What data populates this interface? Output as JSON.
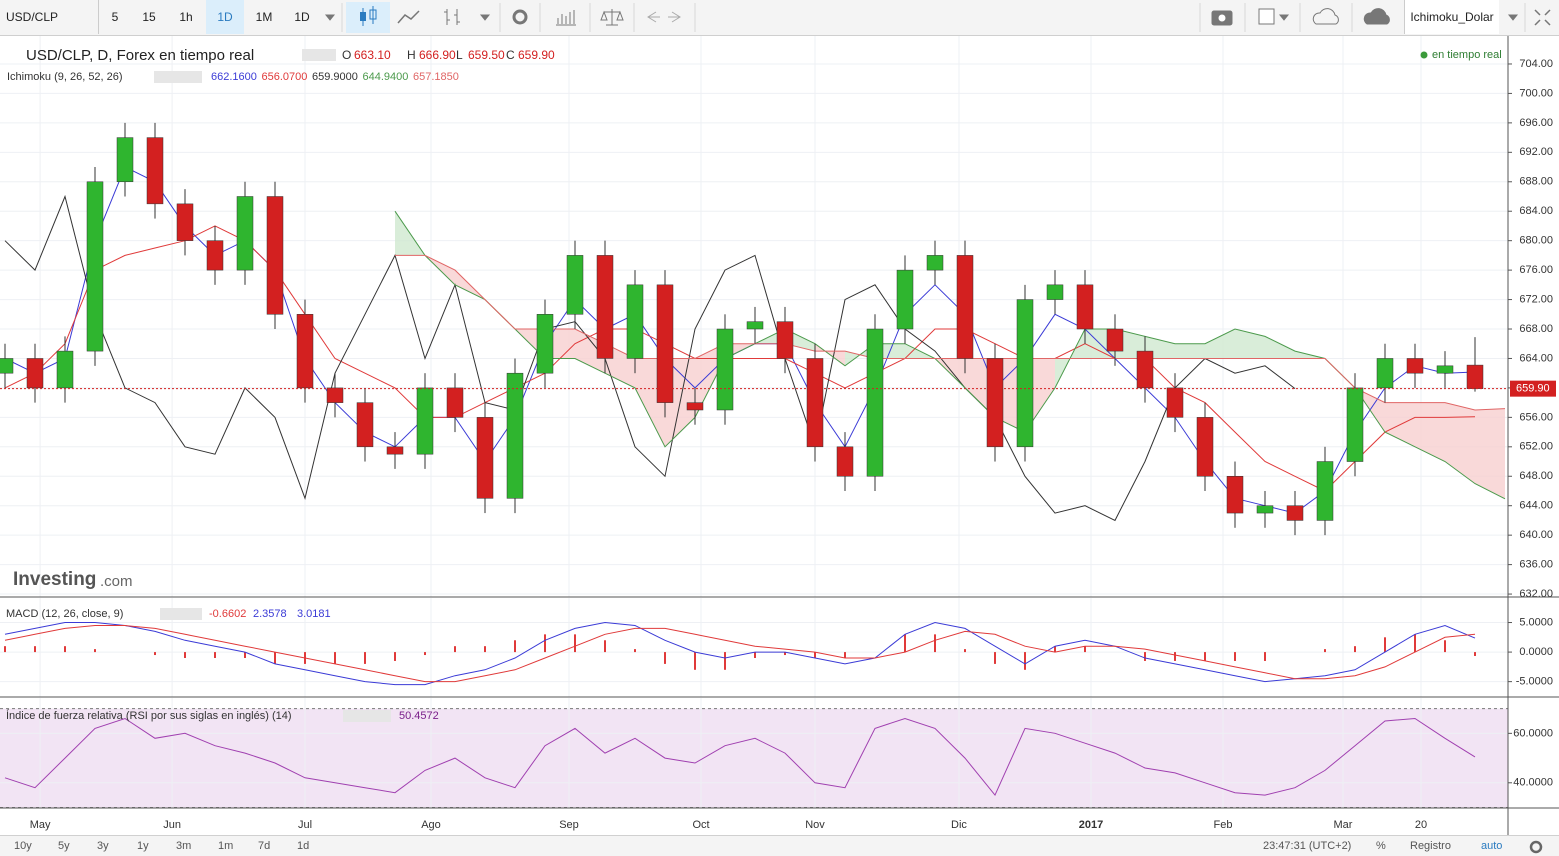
{
  "toolbar": {
    "symbol": "USD/CLP",
    "intervals": [
      "5",
      "15",
      "1h",
      "1D",
      "1M"
    ],
    "interval_menu": "1D",
    "layout_name": "Ichimoku_Dolar"
  },
  "chart_data": [
    {
      "type": "candlestick",
      "title": "USD/CLP, D, Forex en tiempo real",
      "ohlc_keys": [
        "O",
        "H",
        "L",
        "C"
      ],
      "ohlc_labels": [
        "663.10",
        "666.90",
        "659.50",
        "659.90"
      ],
      "status": "en tiempo real",
      "watermark": "Investing",
      "watermark_suffix": ".com",
      "last_label": "659.90",
      "indicator": {
        "title": "Ichimoku (9, 26, 52, 26)",
        "value_labels": [
          "662.1600",
          "656.0700",
          "659.9000",
          "644.9400",
          "657.1850"
        ]
      },
      "up_color": "#2fb52f",
      "down_color": "#d32020",
      "open": [
        662,
        664,
        660,
        665,
        688,
        694,
        685,
        680,
        676,
        686,
        670,
        660,
        658,
        652,
        651,
        660,
        656,
        645,
        662,
        670,
        678,
        664,
        674,
        658,
        657,
        668,
        669,
        664,
        652,
        648,
        668,
        676,
        678,
        664,
        652,
        672,
        674,
        668,
        665,
        660,
        656,
        648,
        643,
        644,
        642,
        650,
        660,
        664,
        662,
        663.1,
        null
      ],
      "high": [
        666,
        666,
        667,
        690,
        696,
        696,
        687,
        682,
        688,
        688,
        672,
        662,
        660,
        654,
        662,
        662,
        658,
        664,
        672,
        680,
        680,
        676,
        676,
        660,
        670,
        671,
        671,
        666,
        654,
        670,
        678,
        680,
        680,
        666,
        674,
        676,
        676,
        670,
        667,
        662,
        658,
        650,
        646,
        646,
        652,
        662,
        666,
        666,
        665,
        666.9,
        null
      ],
      "low": [
        660,
        658,
        658,
        663,
        686,
        683,
        678,
        674,
        674,
        668,
        658,
        656,
        650,
        649,
        649,
        654,
        643,
        643,
        660,
        668,
        662,
        662,
        656,
        655,
        655,
        666,
        662,
        650,
        646,
        646,
        666,
        674,
        662,
        650,
        650,
        670,
        666,
        663,
        658,
        654,
        646,
        641,
        641,
        640,
        640,
        648,
        658,
        660,
        660,
        659.5,
        null
      ],
      "close": [
        664,
        660,
        665,
        688,
        694,
        685,
        680,
        676,
        686,
        670,
        660,
        658,
        652,
        651,
        660,
        656,
        645,
        662,
        670,
        678,
        664,
        674,
        658,
        657,
        668,
        669,
        664,
        652,
        648,
        668,
        676,
        678,
        664,
        652,
        672,
        674,
        668,
        665,
        660,
        656,
        648,
        643,
        644,
        642,
        650,
        660,
        664,
        662,
        663,
        659.9,
        null
      ],
      "series": [
        {
          "color": "#3b3bd6",
          "values": [
            664,
            662,
            664,
            680,
            690,
            688,
            682,
            678,
            680,
            676,
            664,
            658,
            654,
            652,
            656,
            656,
            650,
            656,
            666,
            672,
            668,
            670,
            664,
            660,
            664,
            666,
            666,
            658,
            652,
            660,
            670,
            674,
            670,
            660,
            664,
            670,
            668,
            664,
            660,
            656,
            650,
            645,
            644,
            643,
            646,
            654,
            660,
            663,
            662,
            662.16,
            null
          ]
        },
        {
          "color": "#e03a3a",
          "values": [
            660,
            662,
            666,
            676,
            678,
            679,
            680,
            682,
            680,
            676,
            670,
            664,
            662,
            660,
            656,
            656,
            658,
            660,
            662,
            666,
            668,
            668,
            666,
            664,
            664,
            664,
            664,
            662,
            660,
            662,
            664,
            668,
            668,
            666,
            664,
            664,
            666,
            664,
            664,
            660,
            658,
            654,
            650,
            648,
            646,
            650,
            654,
            656,
            656,
            656.07,
            null
          ]
        },
        {
          "color": "#333333",
          "values": [
            680,
            676,
            686,
            670,
            660,
            658,
            652,
            651,
            660,
            656,
            645,
            662,
            670,
            678,
            664,
            674,
            658,
            657,
            668,
            669,
            664,
            652,
            648,
            668,
            676,
            678,
            664,
            652,
            672,
            674,
            668,
            665,
            660,
            656,
            648,
            643,
            644,
            642,
            650,
            660,
            664,
            662,
            663,
            659.9,
            null,
            null,
            null,
            null,
            null,
            null,
            null
          ]
        },
        {
          "color": "#4c9a4c",
          "values": [
            null,
            null,
            null,
            null,
            null,
            null,
            null,
            null,
            null,
            null,
            null,
            null,
            null,
            684,
            678,
            674,
            672,
            668,
            664,
            664,
            662,
            660,
            652,
            656,
            664,
            666,
            668,
            666,
            663,
            666,
            666,
            664,
            660,
            656,
            654,
            660,
            668,
            668,
            667,
            666,
            666,
            668,
            667,
            665,
            664,
            660,
            654,
            652,
            650,
            647,
            644.94
          ]
        },
        {
          "color": "#e06666",
          "values": [
            null,
            null,
            null,
            null,
            null,
            null,
            null,
            null,
            null,
            null,
            null,
            null,
            null,
            678,
            678,
            676,
            672,
            668,
            668,
            668,
            666,
            664,
            664,
            664,
            666,
            666,
            666,
            665,
            665,
            664,
            664,
            664,
            664,
            664,
            664,
            664,
            664,
            664,
            664,
            664,
            664,
            664,
            664,
            664,
            664,
            660,
            658,
            658,
            658,
            657,
            657.185
          ]
        }
      ],
      "cloud_series": [
        3,
        4
      ],
      "cloud": {
        "up_color": "#cfe9cf",
        "down_color": "#f8d0d0"
      },
      "xlim": [
        -0.1667,
        50.1
      ],
      "xticks": [
        {
          "value": 1.17,
          "label": "May"
        },
        {
          "value": 5.57,
          "label": "Jun"
        },
        {
          "value": 10,
          "label": "Jul"
        },
        {
          "value": 14.2,
          "label": "Ago"
        },
        {
          "value": 18.8,
          "label": "Sep"
        },
        {
          "value": 23.2,
          "label": "Oct"
        },
        {
          "value": 27,
          "label": "Nov"
        },
        {
          "value": 31.8,
          "label": "Dic"
        },
        {
          "value": 36.2,
          "label": "2017"
        },
        {
          "value": 40.6,
          "label": "Feb"
        },
        {
          "value": 44.6,
          "label": "Mar"
        },
        {
          "value": 47.2,
          "label": "20"
        }
      ],
      "ylim": [
        631.6,
        707.8
      ],
      "yticks": [
        {
          "value": 632,
          "label": "632.00"
        },
        {
          "value": 636,
          "label": "636.00"
        },
        {
          "value": 640,
          "label": "640.00"
        },
        {
          "value": 644,
          "label": "644.00"
        },
        {
          "value": 648,
          "label": "648.00"
        },
        {
          "value": 652,
          "label": "652.00"
        },
        {
          "value": 656,
          "label": "656.00"
        },
        {
          "value": 660,
          "label": "660.00"
        },
        {
          "value": 664,
          "label": "664.00"
        },
        {
          "value": 668,
          "label": "668.00"
        },
        {
          "value": 672,
          "label": "672.00"
        },
        {
          "value": 676,
          "label": "676.00"
        },
        {
          "value": 680,
          "label": "680.00"
        },
        {
          "value": 684,
          "label": "684.00"
        },
        {
          "value": 688,
          "label": "688.00"
        },
        {
          "value": 692,
          "label": "692.00"
        },
        {
          "value": 696,
          "label": "696.00"
        },
        {
          "value": 700,
          "label": "700.00"
        },
        {
          "value": 704,
          "label": "704.00"
        }
      ],
      "grid": true
    },
    {
      "type": "macd",
      "title": "MACD (12, 26, close, 9)",
      "series": [
        {
          "color": "#e03a3a",
          "style": "histogram",
          "values": [
            1,
            1,
            1,
            0.5,
            0,
            -0.5,
            -1,
            -1,
            -1,
            -2,
            -2,
            -2,
            -2,
            -1.5,
            -0.5,
            1,
            1,
            2,
            3,
            3,
            2,
            0.5,
            -2,
            -3,
            -3,
            -1,
            -0.5,
            -1,
            -1,
            0,
            3,
            3,
            0.5,
            -2,
            -3,
            1,
            1,
            0,
            -1.5,
            -1.5,
            -1.5,
            -1.5,
            -1.5,
            0,
            0.5,
            1,
            2.5,
            3,
            2,
            -0.6602,
            null
          ]
        },
        {
          "color": "#3b3bd6",
          "style": "line",
          "values": [
            3,
            4,
            5,
            5,
            4.5,
            3.5,
            2,
            1,
            0,
            -2,
            -3,
            -4,
            -5,
            -5.5,
            -5.5,
            -4,
            -3,
            -1,
            2,
            4,
            5,
            4.5,
            2,
            0,
            -1,
            0,
            0,
            -1,
            -2,
            -1,
            3,
            5,
            4,
            1,
            -2,
            1,
            2,
            1,
            -1,
            -2,
            -3,
            -4,
            -5,
            -4.5,
            -4,
            -3,
            0,
            3,
            4.5,
            2.3578,
            null
          ]
        },
        {
          "color": "#e03a3a",
          "style": "line",
          "values": [
            2,
            3,
            4,
            4.5,
            4.5,
            4,
            3,
            2,
            1,
            0,
            -1,
            -2,
            -3,
            -4,
            -5,
            -5,
            -4,
            -3,
            -1,
            1,
            3,
            4,
            4,
            3,
            2,
            1,
            0.5,
            0,
            -1,
            -1,
            0,
            2,
            3.5,
            3,
            1,
            0,
            1,
            1,
            0.5,
            -0.5,
            -1.5,
            -2.5,
            -3.5,
            -4.5,
            -4.5,
            -4,
            -2.5,
            0,
            2.5,
            3.0181,
            null
          ]
        }
      ],
      "ylim": [
        -7.6,
        9.15
      ],
      "yticks": [
        {
          "value": 5,
          "label": "5.0000"
        },
        {
          "value": 0,
          "label": "0.0000"
        },
        {
          "value": -5,
          "label": "-5.0000"
        }
      ]
    },
    {
      "type": "line",
      "title": "Índice de fuerza relativa (RSI por sus siglas en inglés) (14)",
      "color": "#a040b0",
      "values": [
        42,
        38,
        50,
        62,
        66,
        58,
        60,
        55,
        52,
        48,
        42,
        40,
        38,
        36,
        45,
        50,
        42,
        38,
        55,
        62,
        52,
        58,
        50,
        48,
        55,
        58,
        52,
        40,
        38,
        62,
        66,
        62,
        50,
        35,
        62,
        60,
        56,
        52,
        46,
        44,
        40,
        36,
        35,
        38,
        45,
        55,
        65,
        66,
        58,
        50.4572,
        null
      ],
      "band": [
        30,
        70
      ],
      "band_color": "#f2e4f4",
      "ylim": [
        29.8,
        74.3
      ],
      "yticks": [
        {
          "value": 60,
          "label": "60.0000"
        },
        {
          "value": 40,
          "label": "40.0000"
        }
      ]
    }
  ],
  "footer": {
    "ranges": [
      "10y",
      "5y",
      "3y",
      "1y",
      "3m",
      "1m",
      "7d",
      "1d"
    ],
    "time": "23:47:31 (UTC+2)",
    "options": [
      "%",
      "Registro",
      "auto"
    ]
  }
}
